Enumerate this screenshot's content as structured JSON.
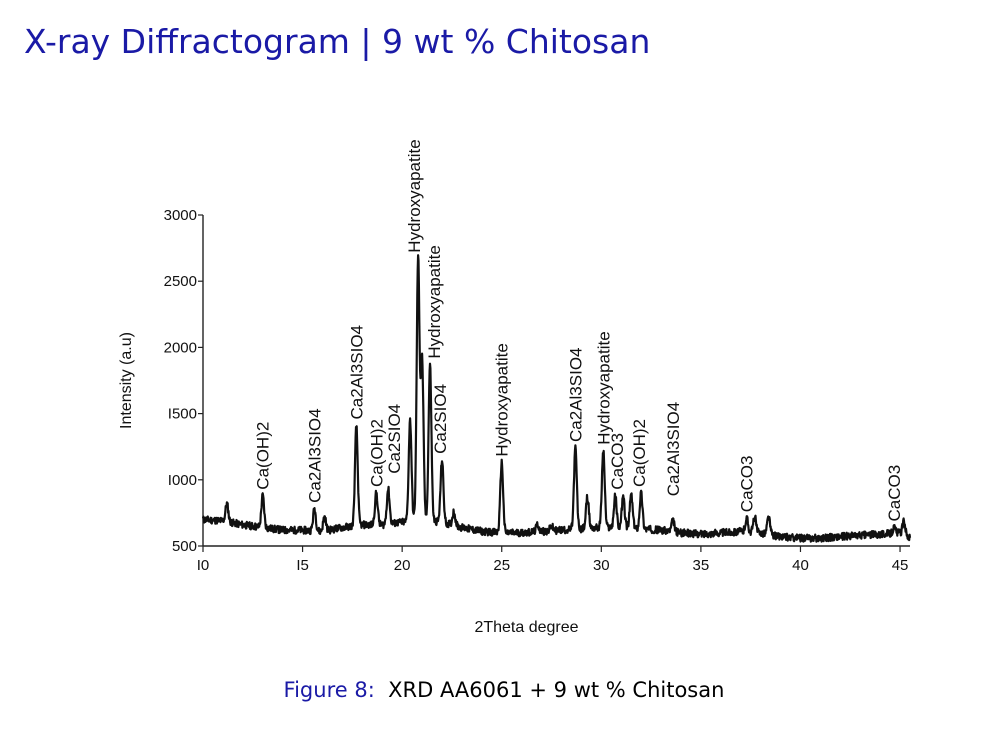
{
  "slide": {
    "title": "X-ray Diffractogram | 9 wt % Chitosan"
  },
  "caption": {
    "figure_label": "Figure 8:",
    "text": "XRD AA6061 + 9 wt % Chitosan"
  },
  "chart_data": {
    "type": "line",
    "title": "",
    "xlabel": "2Theta degree",
    "ylabel": "Intensity (a.u)",
    "xlim": [
      10,
      45.5
    ],
    "ylim": [
      500,
      3000
    ],
    "x_ticks": [
      10,
      15,
      20,
      25,
      30,
      35,
      40,
      45
    ],
    "x_tick_labels": [
      "I0",
      "I5",
      "20",
      "25",
      "30",
      "35",
      "40",
      "45"
    ],
    "y_ticks": [
      500,
      1000,
      1500,
      2000,
      2500,
      3000
    ],
    "y_tick_labels": [
      "500",
      "I000",
      "I500",
      "2000",
      "2500",
      "3000"
    ],
    "grid": false,
    "color": "#111111",
    "series": [
      {
        "name": "",
        "baseline": [
          [
            10,
            700
          ],
          [
            11,
            690
          ],
          [
            12,
            660
          ],
          [
            13,
            640
          ],
          [
            14,
            620
          ],
          [
            15,
            620
          ],
          [
            16,
            610
          ],
          [
            17,
            640
          ],
          [
            18,
            660
          ],
          [
            19,
            660
          ],
          [
            20,
            680
          ],
          [
            21,
            700
          ],
          [
            22,
            680
          ],
          [
            23,
            640
          ],
          [
            24,
            610
          ],
          [
            25,
            600
          ],
          [
            26,
            600
          ],
          [
            27,
            610
          ],
          [
            28,
            620
          ],
          [
            29,
            630
          ],
          [
            30,
            640
          ],
          [
            31,
            640
          ],
          [
            32,
            630
          ],
          [
            33,
            620
          ],
          [
            34,
            600
          ],
          [
            35,
            590
          ],
          [
            36,
            600
          ],
          [
            37,
            610
          ],
          [
            38,
            600
          ],
          [
            39,
            570
          ],
          [
            40,
            560
          ],
          [
            41,
            560
          ],
          [
            42,
            570
          ],
          [
            43,
            580
          ],
          [
            44,
            590
          ],
          [
            45,
            600
          ],
          [
            45.5,
            560
          ]
        ],
        "peaks": [
          [
            11.2,
            820
          ],
          [
            13.0,
            880
          ],
          [
            15.6,
            780
          ],
          [
            16.1,
            720
          ],
          [
            17.7,
            1410
          ],
          [
            18.7,
            900
          ],
          [
            19.3,
            930
          ],
          [
            20.4,
            1450
          ],
          [
            20.8,
            2670
          ],
          [
            21.0,
            1900
          ],
          [
            21.4,
            1870
          ],
          [
            22.0,
            1150
          ],
          [
            22.6,
            760
          ],
          [
            25.0,
            1130
          ],
          [
            26.8,
            660
          ],
          [
            27.5,
            650
          ],
          [
            28.7,
            1240
          ],
          [
            29.3,
            870
          ],
          [
            30.1,
            1220
          ],
          [
            30.7,
            880
          ],
          [
            31.1,
            870
          ],
          [
            31.5,
            890
          ],
          [
            32.0,
            900
          ],
          [
            33.6,
            690
          ],
          [
            37.3,
            710
          ],
          [
            37.7,
            720
          ],
          [
            38.4,
            720
          ],
          [
            44.7,
            640
          ],
          [
            45.2,
            690
          ]
        ]
      }
    ],
    "annotations": [
      {
        "text": "Ca(OH)2",
        "x": 13.0,
        "y": 880
      },
      {
        "text": "Ca2Al3SIO4",
        "x": 15.6,
        "y": 780
      },
      {
        "text": "Ca2Al3SIO4",
        "x": 17.7,
        "y": 1410
      },
      {
        "text": "Ca(OH)2",
        "x": 18.7,
        "y": 900
      },
      {
        "text": "Ca2SIO4",
        "x": 19.6,
        "y": 1000
      },
      {
        "text": "Hydroxyapatite",
        "x": 20.6,
        "y": 2670
      },
      {
        "text": "Hydroxyapatite",
        "x": 21.6,
        "y": 1870
      },
      {
        "text": "Ca2SIO4",
        "x": 21.9,
        "y": 1150
      },
      {
        "text": "Hydroxyapatite",
        "x": 25.0,
        "y": 1130
      },
      {
        "text": "Ca2Al3SIO4",
        "x": 28.7,
        "y": 1240
      },
      {
        "text": "Hydroxyapatite",
        "x": 30.1,
        "y": 1220
      },
      {
        "text": "CaCO3",
        "x": 30.8,
        "y": 880
      },
      {
        "text": "Ca(OH)2",
        "x": 31.9,
        "y": 900
      },
      {
        "text": "Ca2Al3SIO4",
        "x": 33.6,
        "y": 830
      },
      {
        "text": "CaCO3",
        "x": 37.3,
        "y": 710
      },
      {
        "text": "CaCO3",
        "x": 44.7,
        "y": 640
      }
    ]
  }
}
